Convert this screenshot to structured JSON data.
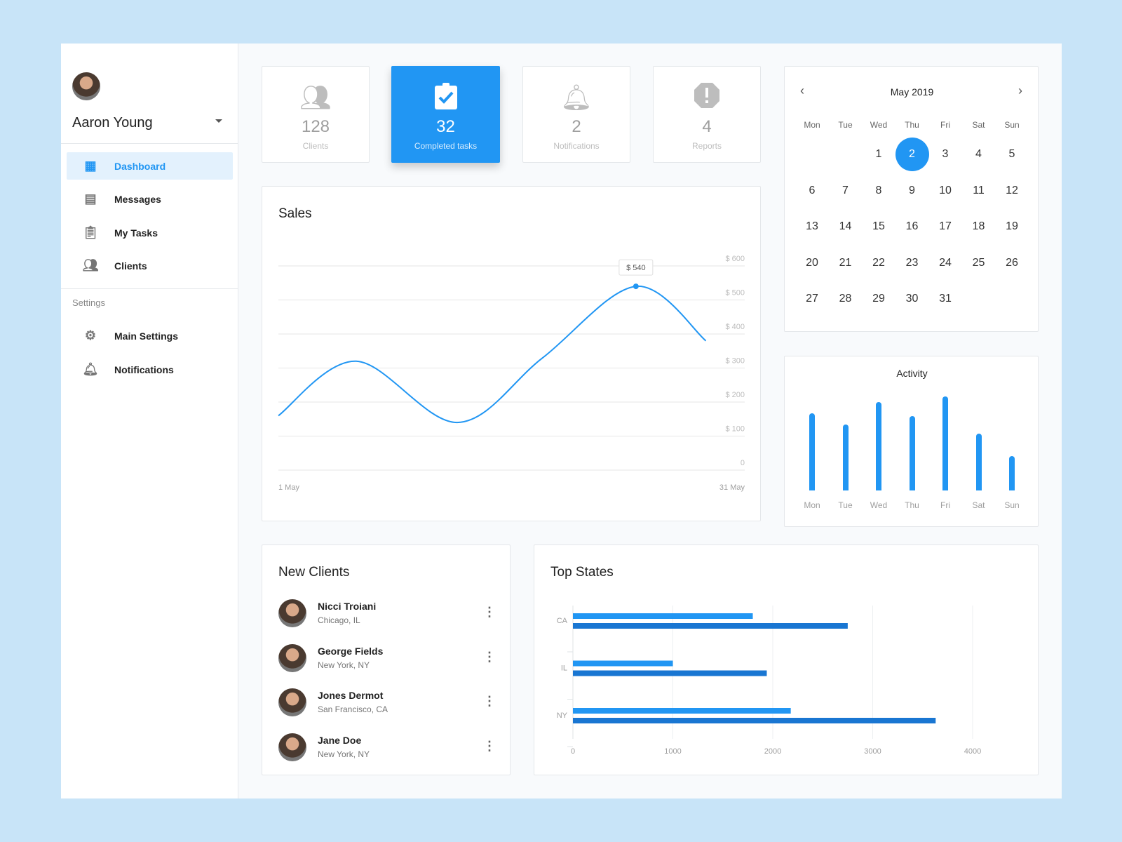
{
  "user": {
    "name": "Aaron Young"
  },
  "sidebar": {
    "items": [
      {
        "label": "Dashboard",
        "icon": "dashboard-icon",
        "active": true
      },
      {
        "label": "Messages",
        "icon": "message-icon"
      },
      {
        "label": "My Tasks",
        "icon": "clipboard-icon"
      },
      {
        "label": "Clients",
        "icon": "people-icon"
      }
    ],
    "settings_label": "Settings",
    "settings_items": [
      {
        "label": "Main Settings",
        "icon": "gear-icon"
      },
      {
        "label": "Notifications",
        "icon": "bell-icon"
      }
    ]
  },
  "stats": [
    {
      "value": "128",
      "label": "Clients",
      "icon": "people-icon"
    },
    {
      "value": "32",
      "label": "Completed tasks",
      "icon": "clipboard-check-icon",
      "selected": true
    },
    {
      "value": "2",
      "label": "Notifications",
      "icon": "bell-icon"
    },
    {
      "value": "4",
      "label": "Reports",
      "icon": "alert-octagon-icon"
    }
  ],
  "accent": "#2196f3",
  "calendar": {
    "title": "May 2019",
    "days": [
      "Mon",
      "Tue",
      "Wed",
      "Thu",
      "Fri",
      "Sat",
      "Sun"
    ],
    "first_weekday": 2,
    "num_days": 31,
    "selected": 2
  },
  "chart_data": [
    {
      "type": "line",
      "title": "Sales",
      "x_labels": [
        "1 May",
        "31 May"
      ],
      "x_unit": "day of May",
      "points": [
        [
          1,
          160
        ],
        [
          6,
          320
        ],
        [
          12.5,
          140
        ],
        [
          18,
          330
        ],
        [
          24,
          540
        ],
        [
          28.5,
          380
        ]
      ],
      "y_ticks": [
        "0",
        "$ 100",
        "$ 200",
        "$ 300",
        "$ 400",
        "$ 500",
        "$ 600"
      ],
      "ylim": [
        0,
        600
      ],
      "grid": true,
      "tooltip": {
        "x": 24,
        "label": "$ 540"
      },
      "color": "#2196f3"
    },
    {
      "type": "bar",
      "title": "Activity",
      "categories": [
        "Mon",
        "Tue",
        "Wed",
        "Thu",
        "Fri",
        "Sat",
        "Sun"
      ],
      "values": [
        108,
        92,
        123,
        104,
        131,
        79,
        48
      ],
      "color": "#2196f3"
    },
    {
      "type": "bar",
      "orientation": "horizontal",
      "title": "Top States",
      "categories": [
        "CA",
        "IL",
        "NY"
      ],
      "series": [
        {
          "values": [
            1800,
            1000,
            2180
          ],
          "color": "#2196f3"
        },
        {
          "values": [
            2750,
            1940,
            3630
          ],
          "color": "#1976d2"
        }
      ],
      "x_ticks": [
        "0",
        "1000",
        "2000",
        "3000",
        "4000"
      ],
      "xlim": [
        0,
        4000
      ],
      "grid": true
    }
  ],
  "new_clients": {
    "title": "New Clients",
    "items": [
      {
        "name": "Nicci Troiani",
        "location": "Chicago, IL"
      },
      {
        "name": "George Fields",
        "location": "New York, NY"
      },
      {
        "name": "Jones Dermot",
        "location": "San Francisco, CA"
      },
      {
        "name": "Jane Doe",
        "location": "New York, NY"
      }
    ]
  }
}
